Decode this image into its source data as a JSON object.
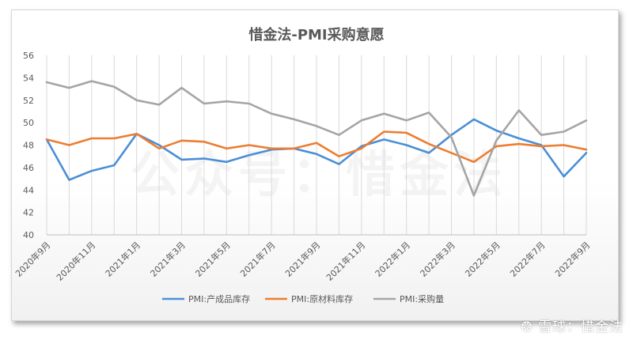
{
  "chart_data": {
    "type": "line",
    "title": "惜金法-PMI采购意愿",
    "x": [
      "2020年9月",
      "2020年10月",
      "2020年11月",
      "2020年12月",
      "2021年1月",
      "2021年2月",
      "2021年3月",
      "2021年4月",
      "2021年5月",
      "2021年6月",
      "2021年7月",
      "2021年8月",
      "2021年9月",
      "2021年10月",
      "2021年11月",
      "2021年12月",
      "2022年1月",
      "2022年2月",
      "2022年3月",
      "2022年4月",
      "2022年5月",
      "2022年6月",
      "2022年7月",
      "2022年8月",
      "2022年9月"
    ],
    "tick_labels": [
      "2020年9月",
      "2020年11月",
      "2021年1月",
      "2021年3月",
      "2021年5月",
      "2021年7月",
      "2021年9月",
      "2021年11月",
      "2022年1月",
      "2022年3月",
      "2022年5月",
      "2022年7月",
      "2022年9月"
    ],
    "ylim": [
      40,
      56
    ],
    "yticks": [
      40,
      42,
      44,
      46,
      48,
      50,
      52,
      54,
      56
    ],
    "grid": "vertical",
    "legend_position": "bottom",
    "series": [
      {
        "name": "PMI:产成品库存",
        "color": "#4a8fd6",
        "values": [
          48.5,
          44.9,
          45.7,
          46.2,
          49.0,
          48.0,
          46.7,
          46.8,
          46.5,
          47.1,
          47.6,
          47.7,
          47.2,
          46.3,
          47.9,
          48.5,
          48.0,
          47.3,
          48.9,
          50.3,
          49.3,
          48.6,
          48.0,
          45.2,
          47.3
        ]
      },
      {
        "name": "PMI:原材料库存",
        "color": "#ed7d31",
        "values": [
          48.5,
          48.0,
          48.6,
          48.6,
          49.0,
          47.7,
          48.4,
          48.3,
          47.7,
          48.0,
          47.7,
          47.7,
          48.2,
          47.0,
          47.7,
          49.2,
          49.1,
          48.1,
          47.3,
          46.5,
          47.9,
          48.1,
          47.9,
          48.0,
          47.6
        ]
      },
      {
        "name": "PMI:采购量",
        "color": "#a5a5a5",
        "values": [
          53.6,
          53.1,
          53.7,
          53.2,
          52.0,
          51.6,
          53.1,
          51.7,
          51.9,
          51.7,
          50.8,
          50.3,
          49.7,
          48.9,
          50.2,
          50.8,
          50.2,
          50.9,
          48.7,
          43.5,
          48.4,
          51.1,
          48.9,
          49.2,
          50.2
        ]
      }
    ]
  },
  "watermark": {
    "center_text": "公众号：惜金法",
    "corner_text": "雪球：惜金法"
  }
}
